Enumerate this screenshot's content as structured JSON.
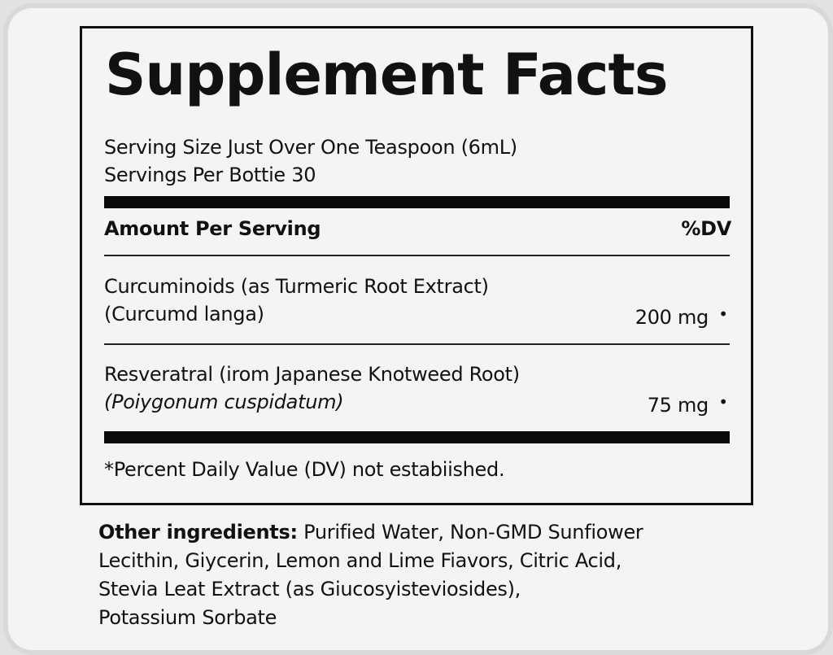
{
  "title": "Supplement Facts",
  "serving_size": "Serving Size Just Over One Teaspoon (6mL)",
  "servings_per": "Servings Per Bottie 30",
  "header": {
    "amount": "Amount Per Serving",
    "dv": "%DV"
  },
  "ingredients": [
    {
      "line1": "Curcuminoids (as Turmeric Root Extract)",
      "line2": "(Curcumd langa)",
      "amount": "200 mg",
      "dv": "•"
    },
    {
      "line1": "Resveratral (irom Japanese Knotweed Root)",
      "line2": "(Poiygonum cuspidatum)",
      "amount": "75 mg",
      "dv": "•"
    }
  ],
  "footnote": "*Percent Daily Value (DV) not estabiished.",
  "other": {
    "label": "Other ingredients:",
    "lines": [
      "Purified Water, Non-GMD Sunfiower",
      "Lecithin, Giycerin, Lemon and Lime Fiavors, Citric Acid,",
      "Stevia Leat Extract (as Giucosyisteviosides),",
      "Potassium Sorbate"
    ]
  }
}
